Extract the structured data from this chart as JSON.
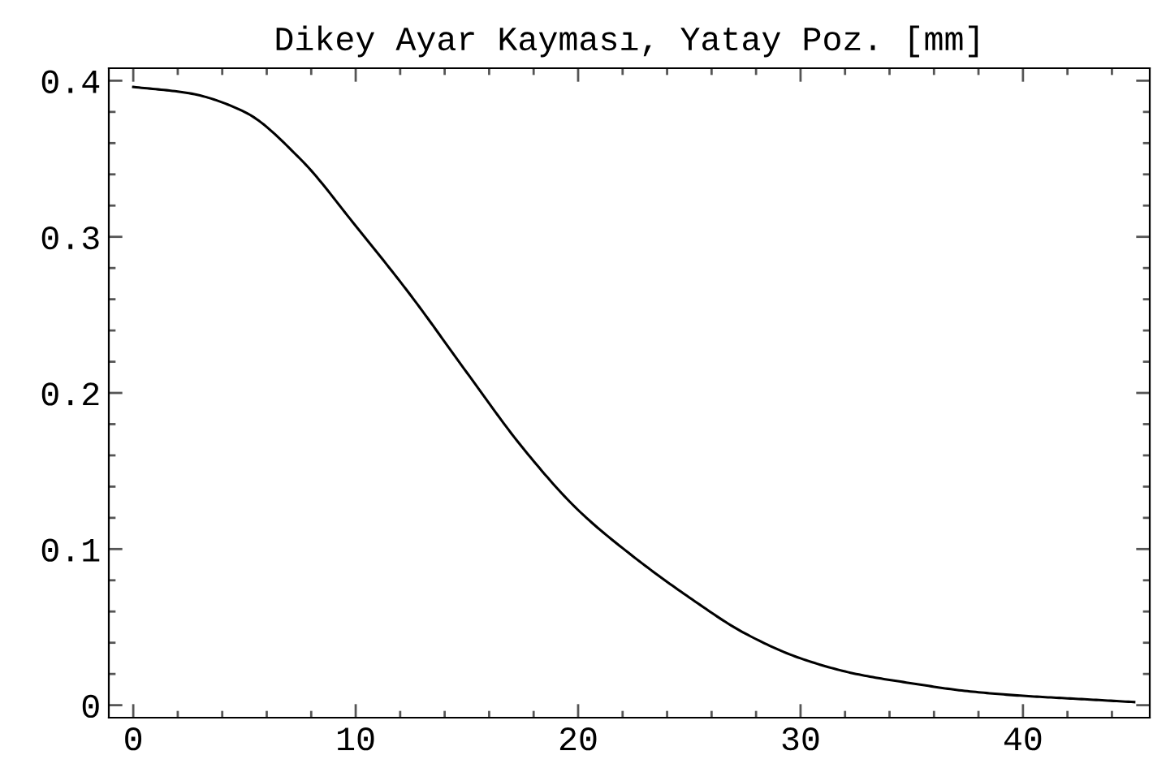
{
  "chart_data": {
    "type": "line",
    "title": "Dikey Ayar Kayması, Yatay Poz. [mm]",
    "x": [
      0,
      2.5,
      5,
      7.5,
      10,
      12.5,
      15,
      17.5,
      20,
      22.5,
      25,
      27.5,
      30,
      32.5,
      35,
      37.5,
      40,
      42.5,
      45
    ],
    "series": [
      {
        "color": "#000000",
        "values": [
          0.396,
          0.392,
          0.38,
          0.35,
          0.307,
          0.262,
          0.213,
          0.165,
          0.125,
          0.095,
          0.069,
          0.046,
          0.03,
          0.02,
          0.014,
          0.009,
          0.006,
          0.004,
          0.002
        ]
      }
    ],
    "xlim": [
      -1.1,
      45.7
    ],
    "ylim": [
      -0.008,
      0.408
    ],
    "xticks": [
      0,
      10,
      20,
      30,
      40
    ],
    "yticks": [
      0,
      0.1,
      0.2,
      0.3,
      0.4
    ],
    "grid": false,
    "marker": "none",
    "line_style": "solid"
  }
}
